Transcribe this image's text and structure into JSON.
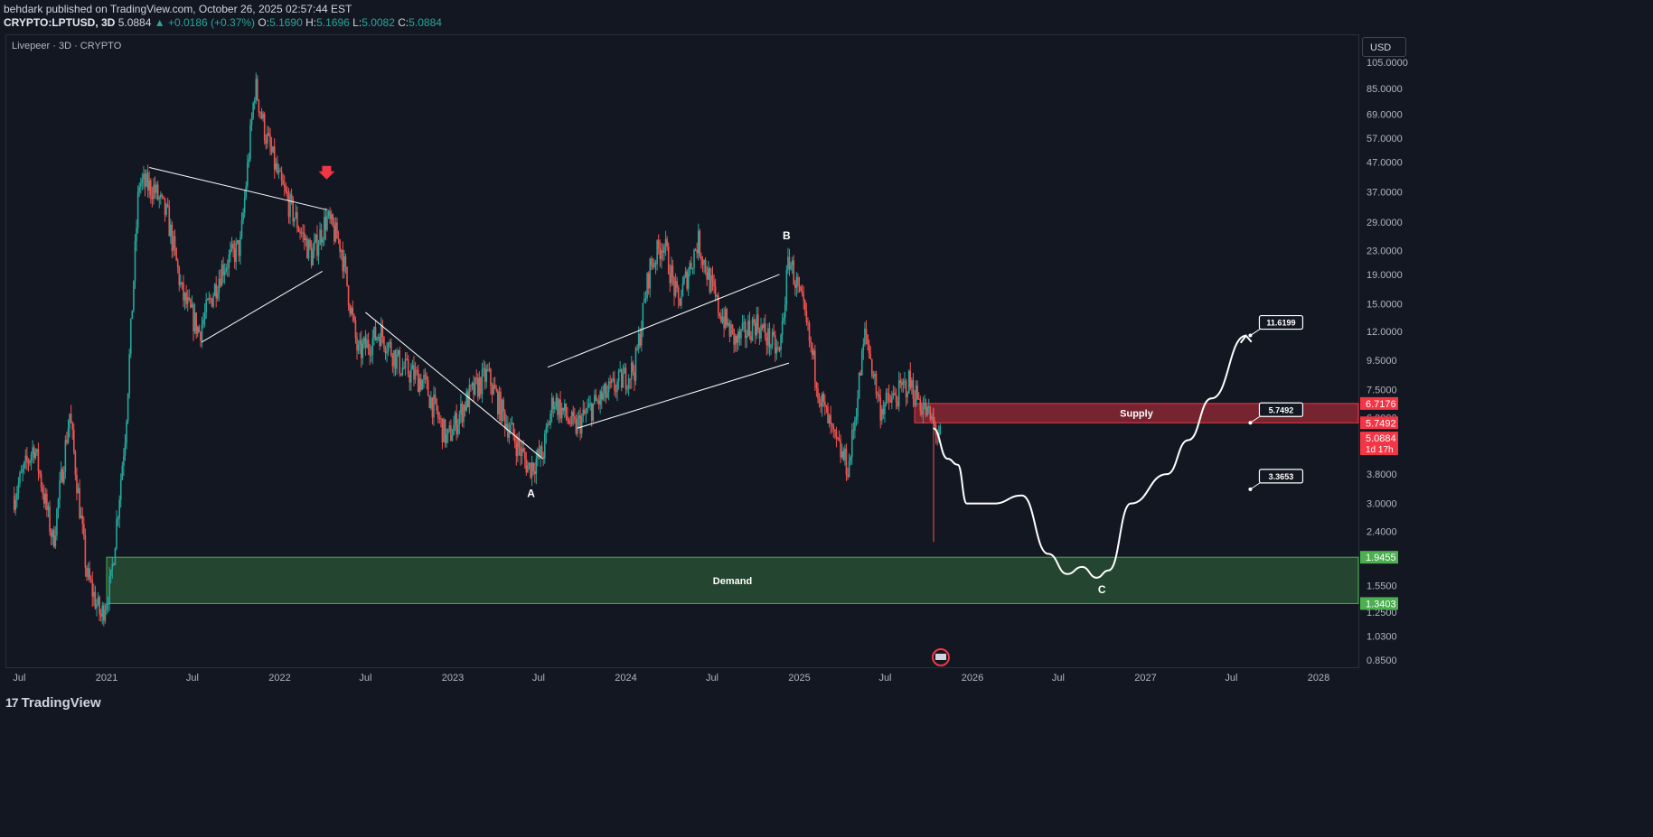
{
  "header": {
    "published": "behdark published on TradingView.com, October 26, 2025 02:57:44 EST",
    "symbol": "CRYPTO:LPTUSD, 3D",
    "last": "5.0884",
    "change": "+0.0186 (+0.37%)",
    "o_label": "O:",
    "o": "5.1690",
    "h_label": "H:",
    "h": "5.1696",
    "l_label": "L:",
    "l": "5.0082",
    "c_label": "C:",
    "c": "5.0884"
  },
  "pane_title": "Livepeer · 3D · CRYPTO",
  "currency": "USD",
  "footer": {
    "brand": "TradingView",
    "logo": "17"
  },
  "colors": {
    "background": "#131722",
    "up": "#26a69a",
    "down": "#ef5350",
    "supply": "#f23645",
    "demand": "#4caf50",
    "annotation": "#ffffff"
  },
  "chart_data": {
    "type": "candlestick",
    "y_scale": "log",
    "ylim": [
      0.8,
      110
    ],
    "y_ticks": [
      "105.0000",
      "85.0000",
      "69.0000",
      "57.0000",
      "47.0000",
      "37.0000",
      "29.0000",
      "23.0000",
      "19.0000",
      "15.0000",
      "12.0000",
      "9.5000",
      "7.5000",
      "6.0000",
      "4.8000",
      "3.8000",
      "3.0000",
      "2.4000",
      "1.9500",
      "1.5500",
      "1.2500",
      "1.0300",
      "0.8500"
    ],
    "x_ticks": [
      "Jul",
      "2021",
      "Jul",
      "2022",
      "Jul",
      "2023",
      "Jul",
      "2024",
      "Jul",
      "2025",
      "Jul",
      "2026",
      "Jul",
      "2027",
      "Jul",
      "2028"
    ],
    "price_path": [
      [
        "2020-06-20",
        3.2
      ],
      [
        "2020-08-01",
        4.8
      ],
      [
        "2020-09-10",
        2.2
      ],
      [
        "2020-10-15",
        6.2
      ],
      [
        "2020-11-20",
        1.7
      ],
      [
        "2020-12-20",
        1.2
      ],
      [
        "2021-01-10",
        1.6
      ],
      [
        "2021-02-10",
        5.5
      ],
      [
        "2021-03-10",
        40
      ],
      [
        "2021-04-10",
        38
      ],
      [
        "2021-05-10",
        30
      ],
      [
        "2021-06-10",
        16
      ],
      [
        "2021-07-15",
        12
      ],
      [
        "2021-09-01",
        20
      ],
      [
        "2021-10-10",
        24
      ],
      [
        "2021-11-10",
        88
      ],
      [
        "2021-12-01",
        60
      ],
      [
        "2022-01-01",
        40
      ],
      [
        "2022-02-10",
        28
      ],
      [
        "2022-03-10",
        22
      ],
      [
        "2022-04-10",
        30
      ],
      [
        "2022-05-10",
        24
      ],
      [
        "2022-06-15",
        10
      ],
      [
        "2022-08-01",
        12
      ],
      [
        "2022-09-15",
        9
      ],
      [
        "2022-11-01",
        8
      ],
      [
        "2022-12-20",
        5
      ],
      [
        "2023-02-01",
        7
      ],
      [
        "2023-03-15",
        8.5
      ],
      [
        "2023-04-20",
        6
      ],
      [
        "2023-06-10",
        4
      ],
      [
        "2023-07-10",
        4.5
      ],
      [
        "2023-08-01",
        7
      ],
      [
        "2023-09-15",
        5.5
      ],
      [
        "2023-10-20",
        6.5
      ],
      [
        "2023-12-01",
        7.5
      ],
      [
        "2024-01-20",
        9
      ],
      [
        "2024-02-20",
        20
      ],
      [
        "2024-03-20",
        25
      ],
      [
        "2024-04-20",
        15
      ],
      [
        "2024-06-01",
        25
      ],
      [
        "2024-07-10",
        15
      ],
      [
        "2024-08-20",
        11
      ],
      [
        "2024-10-01",
        13
      ],
      [
        "2024-11-20",
        10
      ],
      [
        "2024-12-10",
        22
      ],
      [
        "2025-01-10",
        14
      ],
      [
        "2025-02-15",
        7
      ],
      [
        "2025-03-15",
        5
      ],
      [
        "2025-04-15",
        4
      ],
      [
        "2025-05-20",
        12
      ],
      [
        "2025-06-20",
        6.5
      ],
      [
        "2025-07-20",
        7
      ],
      [
        "2025-08-20",
        8
      ],
      [
        "2025-09-20",
        6.5
      ],
      [
        "2025-10-10",
        5.7
      ],
      [
        "2025-10-26",
        5.0884
      ]
    ],
    "zones": [
      {
        "name": "Supply",
        "top": 6.7176,
        "bottom": 5.7492,
        "start": "2025-09-01"
      },
      {
        "name": "Demand",
        "top": 1.9455,
        "bottom": 1.3403,
        "start": "2021-01-01"
      }
    ],
    "wave_labels": [
      {
        "text": "A",
        "date": "2023-06-15",
        "price": 3.25
      },
      {
        "text": "B",
        "date": "2024-12-05",
        "price": 26
      },
      {
        "text": "C",
        "date": "2026-10-01",
        "price": 1.5
      }
    ],
    "projection_path": [
      [
        "2025-10-10",
        5.5
      ],
      [
        "2025-11-10",
        4.3
      ],
      [
        "2025-12-01",
        4.1
      ],
      [
        "2025-12-20",
        3.0
      ],
      [
        "2026-02-15",
        3.0
      ],
      [
        "2026-04-15",
        3.2
      ],
      [
        "2026-06-10",
        2.0
      ],
      [
        "2026-07-20",
        1.7
      ],
      [
        "2026-08-20",
        1.8
      ],
      [
        "2026-09-20",
        1.65
      ],
      [
        "2026-10-15",
        1.75
      ],
      [
        "2026-12-01",
        3.0
      ],
      [
        "2027-02-15",
        3.8
      ],
      [
        "2027-04-01",
        5.0
      ],
      [
        "2027-05-20",
        7.0
      ],
      [
        "2027-08-01",
        11.6
      ]
    ],
    "price_targets": [
      {
        "label": "11.6199",
        "date": "2027-08-10",
        "price": 11.6199
      },
      {
        "label": "5.7492",
        "date": "2027-08-10",
        "price": 5.7492
      },
      {
        "label": "3.3653",
        "date": "2027-08-10",
        "price": 3.3653
      }
    ],
    "axis_badges": [
      {
        "label": "6.7176",
        "price": 6.7176,
        "color": "#f23645"
      },
      {
        "label": "5.7492",
        "price": 5.7492,
        "color": "#f23645"
      },
      {
        "label": "5.0884",
        "sub": "1d 17h",
        "price": 5.0884,
        "color": "#f23645"
      },
      {
        "label": "1.9455",
        "price": 1.9455,
        "color": "#4caf50"
      },
      {
        "label": "1.3403",
        "price": 1.3403,
        "color": "#4caf50"
      }
    ],
    "trendlines": [
      [
        [
          "2021-04-01",
          45
        ],
        [
          "2022-04-10",
          32
        ]
      ],
      [
        [
          "2021-07-20",
          11
        ],
        [
          "2022-04-01",
          19.5
        ]
      ],
      [
        [
          "2022-07-01",
          14
        ],
        [
          "2023-07-10",
          4.3
        ]
      ],
      [
        [
          "2023-07-20",
          9
        ],
        [
          "2024-11-20",
          19
        ]
      ],
      [
        [
          "2023-09-20",
          5.5
        ],
        [
          "2024-12-10",
          9.3
        ]
      ]
    ],
    "marker": {
      "type": "arrow-down",
      "date": "2022-04-10",
      "price": 43
    }
  }
}
